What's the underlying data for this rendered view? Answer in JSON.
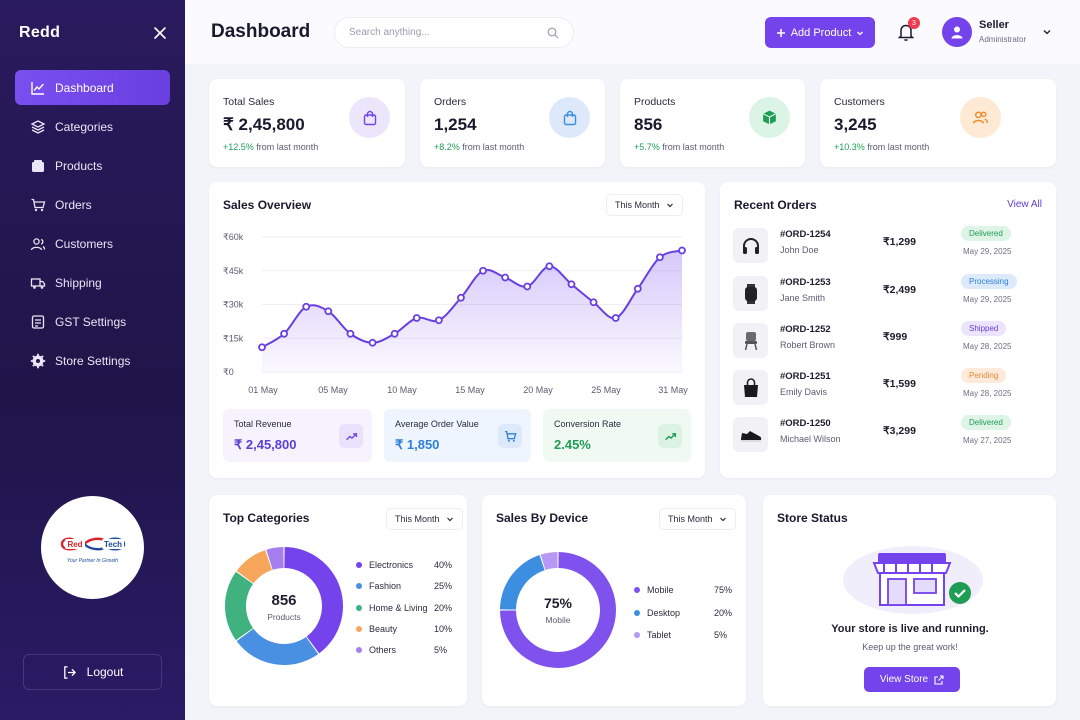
{
  "brand": "Redd",
  "colors": {
    "accent": "#7443ec",
    "sidebar": "#231752",
    "success": "#1f9d55"
  },
  "sidebar": {
    "items": [
      {
        "label": "Dashboard",
        "icon": "chart-line-icon",
        "active": true
      },
      {
        "label": "Categories",
        "icon": "layers-icon"
      },
      {
        "label": "Products",
        "icon": "box-icon"
      },
      {
        "label": "Orders",
        "icon": "cart-icon"
      },
      {
        "label": "Customers",
        "icon": "users-icon"
      },
      {
        "label": "Shipping",
        "icon": "truck-icon"
      },
      {
        "label": "GST Settings",
        "icon": "receipt-icon"
      },
      {
        "label": "Store Settings",
        "icon": "gear-icon"
      }
    ],
    "logo": {
      "left": "Red",
      "right": "Tech",
      "tagline": "Your Partner In Growth"
    },
    "logout_label": "Logout"
  },
  "header": {
    "title": "Dashboard",
    "search_placeholder": "Search anything...",
    "add_button": "Add Product",
    "notifications_count": "3",
    "user_name": "Seller",
    "user_role": "Administrator"
  },
  "stats": [
    {
      "title": "Total Sales",
      "value": "₹ 2,45,800",
      "change": "+12.5%",
      "suffix": "from last month",
      "icon": "shopping-bag-icon"
    },
    {
      "title": "Orders",
      "value": "1,254",
      "change": "+8.2%",
      "suffix": "from last month",
      "icon": "shopping-bag-icon"
    },
    {
      "title": "Products",
      "value": "856",
      "change": "+5.7%",
      "suffix": "from last month",
      "icon": "cube-icon"
    },
    {
      "title": "Customers",
      "value": "3,245",
      "change": "+10.3%",
      "suffix": "from last month",
      "icon": "users-icon"
    }
  ],
  "sales_overview": {
    "title": "Sales Overview",
    "period": "This Month",
    "kpis": [
      {
        "label": "Total Revenue",
        "value": "₹ 2,45,800"
      },
      {
        "label": "Average Order Value",
        "value": "₹ 1,850"
      },
      {
        "label": "Conversion Rate",
        "value": "2.45%"
      }
    ]
  },
  "chart_data": {
    "type": "area",
    "title": "Sales Overview",
    "xlabel": "",
    "ylabel": "",
    "y_ticks": [
      "₹0",
      "₹15k",
      "₹30k",
      "₹45k",
      "₹60k"
    ],
    "ylim": [
      0,
      60000
    ],
    "x_ticks": [
      "01 May",
      "05 May",
      "10 May",
      "15 May",
      "20 May",
      "25 May",
      "31 May"
    ],
    "x": [
      1,
      2,
      3,
      4,
      5,
      6,
      7,
      8,
      9,
      10,
      11,
      12,
      13,
      14,
      15,
      16,
      17,
      18,
      19,
      20
    ],
    "values": [
      11000,
      17000,
      29000,
      27000,
      17000,
      13000,
      17000,
      24000,
      23000,
      33000,
      45000,
      42000,
      38000,
      47000,
      39000,
      31000,
      24000,
      37000,
      51000,
      54000
    ],
    "grid": true
  },
  "recent_orders": {
    "title": "Recent Orders",
    "view_all": "View All",
    "rows": [
      {
        "id": "#ORD-1254",
        "customer": "John Doe",
        "amount": "₹1,299",
        "status": "Delivered",
        "date": "May 29, 2025",
        "thumb": "headphones-icon"
      },
      {
        "id": "#ORD-1253",
        "customer": "Jane Smith",
        "amount": "₹2,499",
        "status": "Processing",
        "date": "May 29, 2025",
        "thumb": "smartwatch-icon"
      },
      {
        "id": "#ORD-1252",
        "customer": "Robert Brown",
        "amount": "₹999",
        "status": "Shipped",
        "date": "May 28, 2025",
        "thumb": "chair-icon"
      },
      {
        "id": "#ORD-1251",
        "customer": "Emily Davis",
        "amount": "₹1,599",
        "status": "Pending",
        "date": "May 28, 2025",
        "thumb": "handbag-icon"
      },
      {
        "id": "#ORD-1250",
        "customer": "Michael Wilson",
        "amount": "₹3,299",
        "status": "Delivered",
        "date": "May 27, 2025",
        "thumb": "sneaker-icon"
      }
    ]
  },
  "top_categories": {
    "title": "Top Categories",
    "period": "This Month",
    "center_value": "856",
    "center_label": "Products",
    "items": [
      {
        "name": "Electronics",
        "pct": "40%",
        "value": 40,
        "color": "#7443ec"
      },
      {
        "name": "Fashion",
        "pct": "25%",
        "value": 25,
        "color": "#4a90e2"
      },
      {
        "name": "Home & Living",
        "pct": "20%",
        "value": 20,
        "color": "#3fb27f"
      },
      {
        "name": "Beauty",
        "pct": "10%",
        "value": 10,
        "color": "#f5a65b"
      },
      {
        "name": "Others",
        "pct": "5%",
        "value": 5,
        "color": "#a57ef0"
      }
    ]
  },
  "sales_by_device": {
    "title": "Sales By Device",
    "period": "This Month",
    "center_value": "75%",
    "center_label": "Mobile",
    "items": [
      {
        "name": "Mobile",
        "pct": "75%",
        "value": 75,
        "color": "#7f52ee"
      },
      {
        "name": "Desktop",
        "pct": "20%",
        "value": 20,
        "color": "#3c8fe0"
      },
      {
        "name": "Tablet",
        "pct": "5%",
        "value": 5,
        "color": "#b798f4"
      }
    ]
  },
  "store_status": {
    "title": "Store Status",
    "message": "Your store is live and running.",
    "sub": "Keep up the great work!",
    "button": "View Store"
  }
}
